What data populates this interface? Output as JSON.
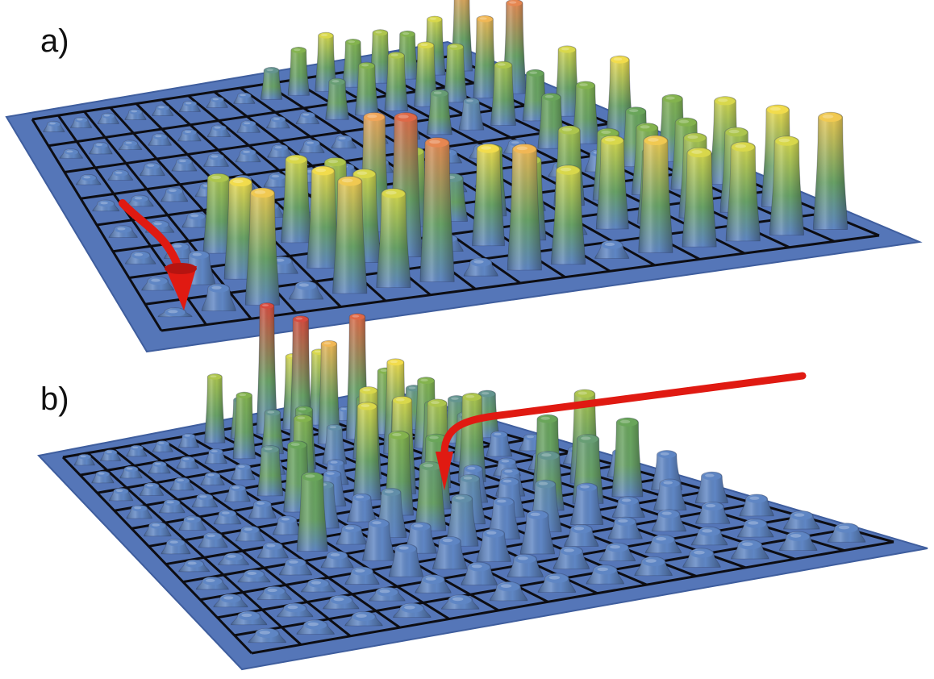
{
  "figure": {
    "colors": {
      "plate": "#5576b8",
      "plate_edge": "#3f5e9e",
      "grid_line": "#0d0d12",
      "low": "#5f86c4",
      "mid": "#6aa84f",
      "high_yellow": "#f2e34a",
      "high_orange": "#f0a55a",
      "peak": "#d64a3e",
      "arrow": "#e01a12"
    },
    "panels": [
      {
        "id": "a",
        "label": "a)",
        "grid_rows": 8,
        "grid_cols": 16,
        "arrow_icon": "curved-down-arrow-icon",
        "heights": [
          [
            0.1,
            0.1,
            0.1,
            0.1,
            0.1,
            0.1,
            0.1,
            0.1,
            0.3,
            0.45,
            0.55,
            0.45,
            0.5,
            0.45,
            0.55,
            0.75
          ],
          [
            0.08,
            0.1,
            0.08,
            0.1,
            0.1,
            0.1,
            0.1,
            0.1,
            0.1,
            0.35,
            0.45,
            0.5,
            0.55,
            0.5,
            0.7,
            0.8
          ],
          [
            0.08,
            0.08,
            0.1,
            0.1,
            0.1,
            0.1,
            0.1,
            0.1,
            0.1,
            0.1,
            0.2,
            0.35,
            0.25,
            0.5,
            0.4,
            0.55
          ],
          [
            0.08,
            0.08,
            0.1,
            0.1,
            0.12,
            0.1,
            0.1,
            0.1,
            0.1,
            0.1,
            0.1,
            0.1,
            0.1,
            0.4,
            0.45,
            0.6
          ],
          [
            0.08,
            0.08,
            0.1,
            0.1,
            0.1,
            0.1,
            0.1,
            0.1,
            0.1,
            0.1,
            0.1,
            0.1,
            0.1,
            0.15,
            0.4,
            0.45
          ],
          [
            0.08,
            0.1,
            0.5,
            0.1,
            0.55,
            0.5,
            0.75,
            0.5,
            0.3,
            0.45,
            0.2,
            0.5,
            0.45,
            0.45,
            0.45,
            0.55
          ],
          [
            0.08,
            0.2,
            0.6,
            0.1,
            0.6,
            0.55,
            0.85,
            0.1,
            0.6,
            0.5,
            0.1,
            0.55,
            0.45,
            0.5,
            0.5,
            0.6
          ],
          [
            0.05,
            0.15,
            0.65,
            0.1,
            0.65,
            0.55,
            0.8,
            0.1,
            0.7,
            0.55,
            0.1,
            0.65,
            0.55,
            0.55,
            0.55,
            0.65
          ]
        ]
      },
      {
        "id": "b",
        "label": "b)",
        "grid_rows": 11,
        "grid_cols": 13,
        "arrow_icon": "long-bent-arrow-icon",
        "heights": [
          [
            0.08,
            0.08,
            0.08,
            0.08,
            0.1,
            0.5,
            0.3,
            0.95,
            0.55,
            0.55,
            0.1,
            0.1,
            0.1
          ],
          [
            0.08,
            0.08,
            0.08,
            0.08,
            0.1,
            0.45,
            0.3,
            0.9,
            0.7,
            0.85,
            0.45,
            0.3,
            0.1
          ],
          [
            0.08,
            0.08,
            0.08,
            0.08,
            0.1,
            0.1,
            0.4,
            0.25,
            0.4,
            0.6,
            0.45,
            0.3,
            0.3
          ],
          [
            0.08,
            0.08,
            0.08,
            0.1,
            0.3,
            0.45,
            0.15,
            0.55,
            0.45,
            0.4,
            0.3,
            0.15,
            0.1
          ],
          [
            0.08,
            0.08,
            0.08,
            0.1,
            0.4,
            0.2,
            0.55,
            0.55,
            0.5,
            0.5,
            0.1,
            0.1,
            0.1
          ],
          [
            0.08,
            0.08,
            0.08,
            0.1,
            0.25,
            0.15,
            0.45,
            0.4,
            0.2,
            0.15,
            0.4,
            0.5,
            0.15
          ],
          [
            0.06,
            0.06,
            0.08,
            0.4,
            0.1,
            0.25,
            0.35,
            0.25,
            0.2,
            0.3,
            0.35,
            0.4,
            0.2
          ],
          [
            0.06,
            0.06,
            0.08,
            0.08,
            0.2,
            0.15,
            0.25,
            0.2,
            0.25,
            0.2,
            0.1,
            0.15,
            0.15
          ],
          [
            0.06,
            0.06,
            0.06,
            0.08,
            0.15,
            0.15,
            0.15,
            0.2,
            0.1,
            0.1,
            0.1,
            0.1,
            0.1
          ],
          [
            0.06,
            0.06,
            0.06,
            0.06,
            0.08,
            0.1,
            0.1,
            0.1,
            0.08,
            0.08,
            0.08,
            0.08,
            0.08
          ],
          [
            0.06,
            0.06,
            0.06,
            0.06,
            0.06,
            0.08,
            0.08,
            0.08,
            0.08,
            0.08,
            0.08,
            0.08,
            0.08
          ]
        ]
      }
    ]
  }
}
